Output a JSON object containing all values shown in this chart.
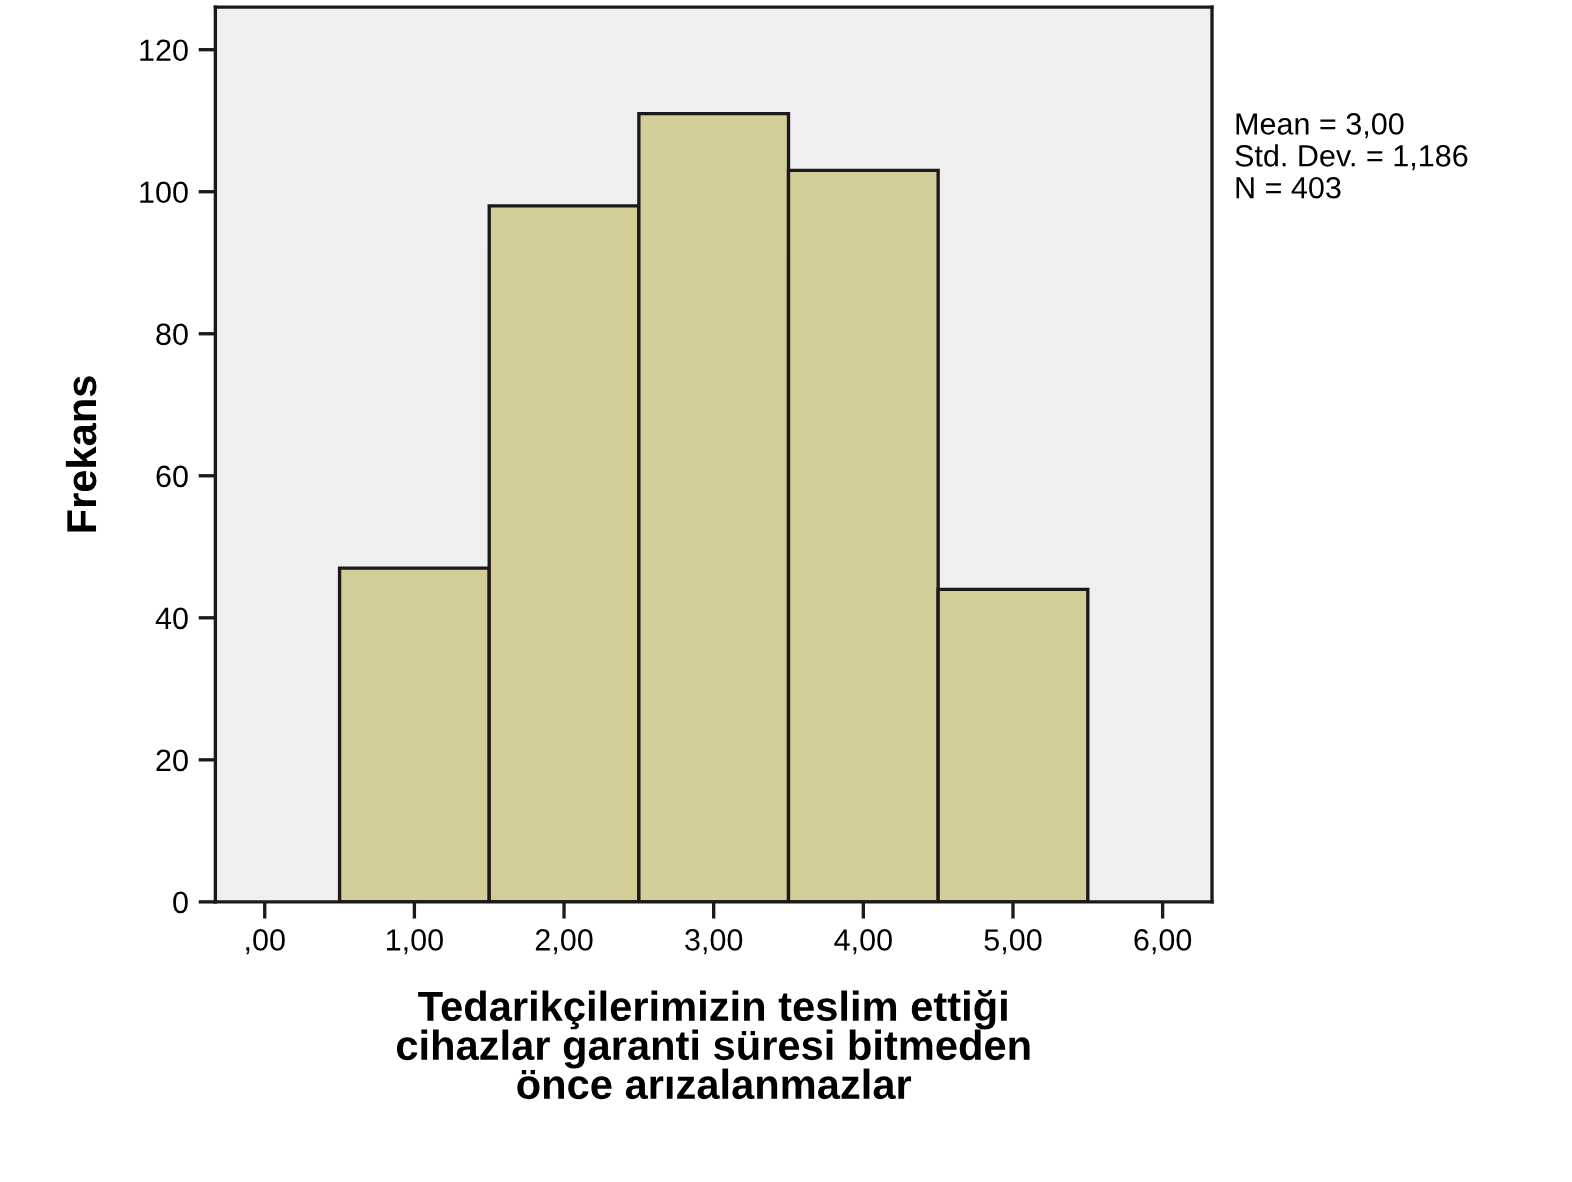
{
  "chart_data": {
    "type": "histogram",
    "xlabel": "Tedarikçilerimizin teslim ettiği\ncihazlar garanti süresi bitmeden\nönce arızalanmazlar",
    "ylabel": "Frekans",
    "bins": [
      0.5,
      1.5,
      2.5,
      3.5,
      4.5,
      5.5
    ],
    "values": [
      47,
      98,
      111,
      103,
      44
    ],
    "color": "#d3ce97",
    "xlim": [
      -0.33,
      6.33
    ],
    "ylim": [
      0,
      126
    ],
    "xticks": [
      {
        "value": 0,
        "label": ",00"
      },
      {
        "value": 1,
        "label": "1,00"
      },
      {
        "value": 2,
        "label": "2,00"
      },
      {
        "value": 3,
        "label": "3,00"
      },
      {
        "value": 4,
        "label": "4,00"
      },
      {
        "value": 5,
        "label": "5,00"
      },
      {
        "value": 6,
        "label": "6,00"
      }
    ],
    "yticks": [
      0,
      20,
      40,
      60,
      80,
      100,
      120
    ],
    "grid": false,
    "annotations": [
      "Mean = 3,00",
      "Std. Dev. = 1,186",
      "N = 403"
    ]
  }
}
